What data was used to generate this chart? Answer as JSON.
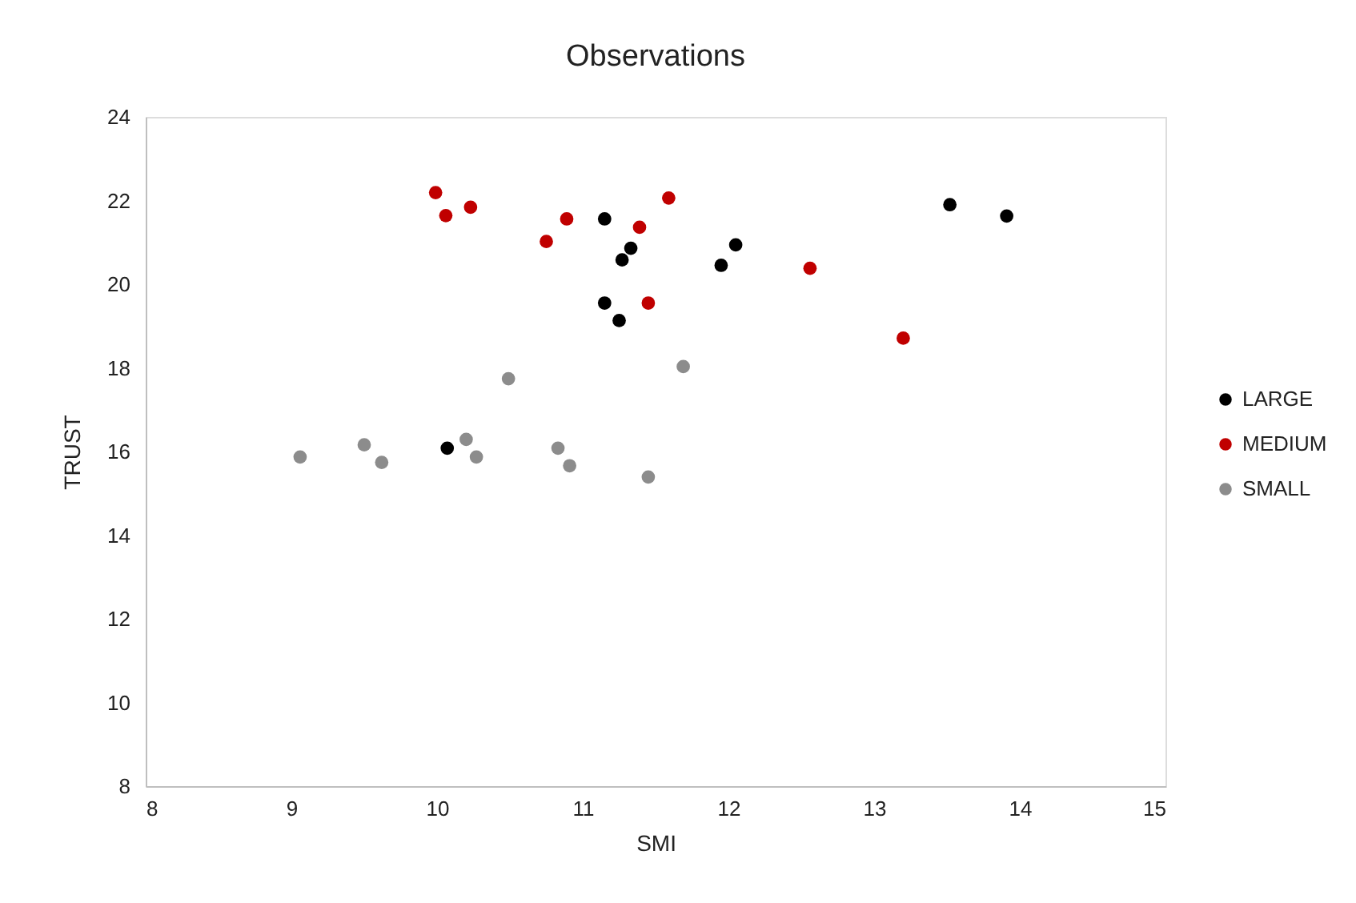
{
  "chart_data": {
    "type": "scatter",
    "title": "Observations",
    "xlabel": "SMI",
    "ylabel": "TRUST",
    "xlim": [
      8,
      15
    ],
    "xticks": [
      8,
      9,
      10,
      11,
      12,
      13,
      14,
      15
    ],
    "ylim": [
      8,
      24
    ],
    "yticks": [
      8,
      10,
      12,
      14,
      16,
      18,
      20,
      22,
      24
    ],
    "grid": false,
    "legend": "right",
    "marker": "circle",
    "series": [
      {
        "name": "LARGE",
        "color": "#000000",
        "x": [
          11.15,
          11.33,
          11.27,
          11.15,
          11.25,
          12.05,
          11.95,
          13.52,
          13.91,
          10.07
        ],
        "values": [
          21.56,
          20.86,
          20.58,
          19.55,
          19.13,
          20.94,
          20.45,
          21.9,
          21.63,
          16.08
        ]
      },
      {
        "name": "MEDIUM",
        "color": "#c00000",
        "x": [
          9.99,
          10.06,
          10.23,
          10.89,
          10.75,
          11.39,
          11.59,
          11.45,
          12.56,
          13.2
        ],
        "values": [
          22.19,
          21.64,
          21.84,
          21.56,
          21.02,
          21.36,
          22.06,
          19.55,
          20.38,
          18.71
        ]
      },
      {
        "name": "SMALL",
        "color": "#8c8c8c",
        "x": [
          9.06,
          9.5,
          9.62,
          10.2,
          10.27,
          10.49,
          10.83,
          10.91,
          11.45,
          11.69
        ],
        "values": [
          15.87,
          16.16,
          15.74,
          16.29,
          15.87,
          17.74,
          16.08,
          15.66,
          15.39,
          18.03
        ]
      }
    ]
  }
}
